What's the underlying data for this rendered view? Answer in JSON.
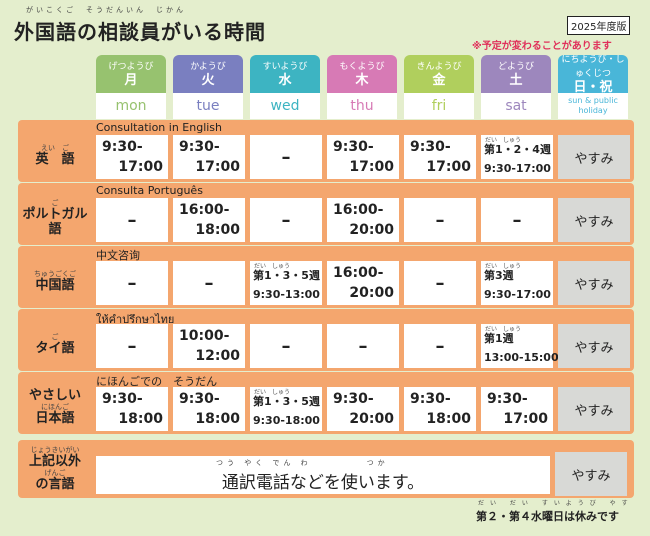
{
  "header": {
    "title": "外国語の相談員がいる時間",
    "title_ruby": "がいこくご　そうだんいん　じかん",
    "edition": "2025年度版",
    "notice": "※予定が変わることがあります"
  },
  "days": [
    {
      "ruby": "げつようび",
      "kanji": "月",
      "en": "mon",
      "color": "#97c26f"
    },
    {
      "ruby": "かようび",
      "kanji": "火",
      "en": "tue",
      "color": "#7a7fc0"
    },
    {
      "ruby": "すいようび",
      "kanji": "水",
      "en": "wed",
      "color": "#3db4c2"
    },
    {
      "ruby": "もくようび",
      "kanji": "木",
      "en": "thu",
      "color": "#d77ab5"
    },
    {
      "ruby": "きんようび",
      "kanji": "金",
      "en": "fri",
      "color": "#b0cf5d"
    },
    {
      "ruby": "どようび",
      "kanji": "土",
      "en": "sat",
      "color": "#9d87bd"
    },
    {
      "ruby": "にちようび・しゅくじつ",
      "kanji": "日・祝",
      "en": "sun & public holiday",
      "color": "#49b6d8"
    }
  ],
  "rows": [
    {
      "band_label": "Consultation in English",
      "lang_ruby": "えい　ご",
      "lang": "英　語",
      "cells": [
        {
          "l1": "9:30-",
          "l2": "17:00"
        },
        {
          "l1": "9:30-",
          "l2": "17:00"
        },
        {
          "dash": "–"
        },
        {
          "l1": "9:30-",
          "l2": "17:00"
        },
        {
          "l1": "9:30-",
          "l2": "17:00"
        },
        {
          "ruby": "だい　しゅう",
          "w1": "第1・2・4週",
          "w2": "9:30-17:00"
        },
        {
          "closed": "やすみ"
        }
      ]
    },
    {
      "band_label": "Consulta Português",
      "lang_ruby": "ご",
      "lang": "ポルトガル語",
      "cells": [
        {
          "dash": "–"
        },
        {
          "l1": "16:00-",
          "l2": "18:00"
        },
        {
          "dash": "–"
        },
        {
          "l1": "16:00-",
          "l2": "20:00"
        },
        {
          "dash": "–"
        },
        {
          "dash": "–"
        },
        {
          "closed": "やすみ"
        }
      ]
    },
    {
      "band_label": "中文咨询",
      "lang_ruby": "ちゅうごくご",
      "lang": "中国語",
      "cells": [
        {
          "dash": "–"
        },
        {
          "dash": "–"
        },
        {
          "ruby": "だい　しゅう",
          "w1": "第1・3・5週",
          "w2": "9:30-13:00"
        },
        {
          "l1": "16:00-",
          "l2": "20:00"
        },
        {
          "dash": "–"
        },
        {
          "ruby": "だい　しゅう",
          "w1": "第3週",
          "w2": "9:30-17:00"
        },
        {
          "closed": "やすみ"
        }
      ]
    },
    {
      "band_label": "ให้คำปรึกษาไทย",
      "lang_ruby": "ご",
      "lang": "タイ語",
      "cells": [
        {
          "dash": "–"
        },
        {
          "l1": "10:00-",
          "l2": "12:00"
        },
        {
          "dash": "–"
        },
        {
          "dash": "–"
        },
        {
          "dash": "–"
        },
        {
          "ruby": "だい　しゅう",
          "w1": "第1週",
          "w2": "13:00-15:00"
        },
        {
          "closed": "やすみ"
        }
      ]
    },
    {
      "band_label": "にほんごでの　そうだん",
      "lang_ruby": "にほんご",
      "lang": "やさしい",
      "lang2": "日本語",
      "cells": [
        {
          "l1": "9:30-",
          "l2": "18:00"
        },
        {
          "l1": "9:30-",
          "l2": "18:00"
        },
        {
          "ruby": "だい　しゅう",
          "w1": "第1・3・5週",
          "w2": "9:30-18:00"
        },
        {
          "l1": "9:30-",
          "l2": "20:00"
        },
        {
          "l1": "9:30-",
          "l2": "18:00"
        },
        {
          "l1": "9:30-",
          "l2": "17:00"
        },
        {
          "closed": "やすみ"
        }
      ]
    }
  ],
  "last_row": {
    "lang_ruby": "じょうきいがい",
    "lang": "上記以外",
    "lang_ruby2": "げんご",
    "lang2": "の言語",
    "wide_ruby": "つう やく でん わ　　　　　つか",
    "wide_text": "通訳電話などを使います。",
    "closed": "やすみ"
  },
  "footer": {
    "ruby": "だい だい すいようび やす",
    "note": "第２・第４水曜日は休みです"
  }
}
